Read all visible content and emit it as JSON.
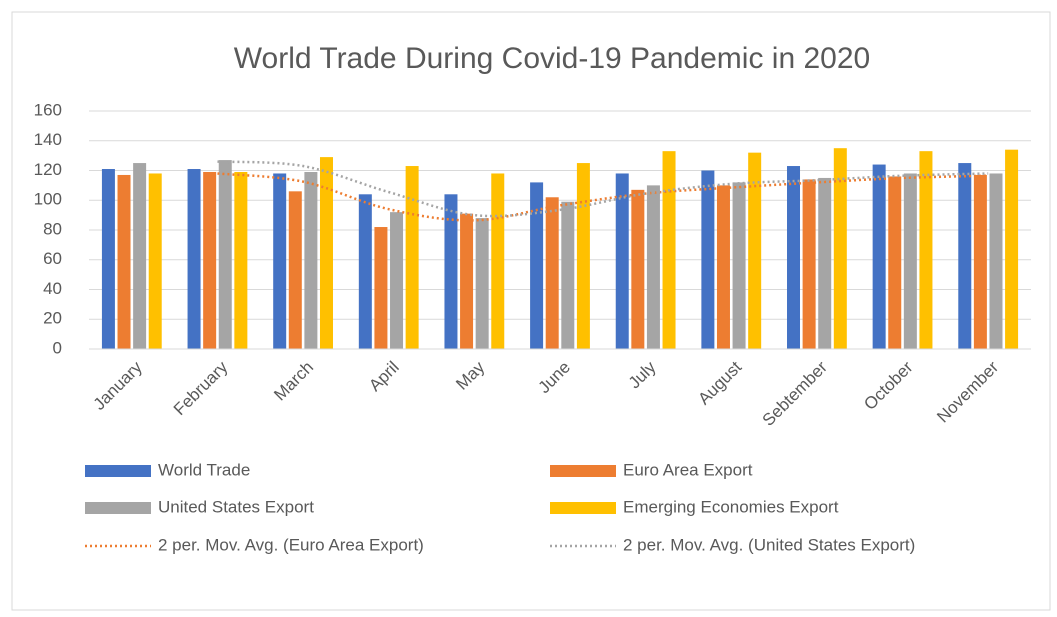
{
  "chart_data": {
    "type": "bar",
    "title": "World Trade During Covid-19 Pandemic in 2020",
    "categories": [
      "January",
      "February",
      "March",
      "April",
      "May",
      "June",
      "July",
      "August",
      "Sebtember",
      "October",
      "November"
    ],
    "series": [
      {
        "name": "World Trade",
        "color": "#4472c4",
        "values": [
          121,
          121,
          118,
          104,
          104,
          112,
          118,
          120,
          123,
          124,
          125
        ]
      },
      {
        "name": "Euro Area Export",
        "color": "#ed7d31",
        "values": [
          117,
          119,
          106,
          82,
          91,
          102,
          107,
          110,
          114,
          116,
          117
        ]
      },
      {
        "name": "United States Export",
        "color": "#a5a5a5",
        "values": [
          125,
          127,
          119,
          92,
          88,
          99,
          110,
          112,
          115,
          118,
          118
        ]
      },
      {
        "name": "Emerging Economies Export",
        "color": "#ffc000",
        "values": [
          118,
          119,
          129,
          123,
          118,
          125,
          133,
          132,
          135,
          133,
          134
        ]
      }
    ],
    "trendlines": [
      {
        "name": "2 per. Mov. Avg. (Euro Area Export)",
        "color": "#ed7d31",
        "values": [
          null,
          118,
          112.5,
          94,
          86.5,
          96.5,
          104.5,
          108.5,
          112,
          115,
          116.5
        ]
      },
      {
        "name": "2 per. Mov. Avg. (United States Export)",
        "color": "#a5a5a5",
        "values": [
          null,
          126,
          123,
          105.5,
          90,
          93.5,
          104.5,
          111,
          113.5,
          116.5,
          118
        ]
      }
    ],
    "ylim": [
      0,
      160
    ],
    "yticks": [
      0,
      20,
      40,
      60,
      80,
      100,
      120,
      140,
      160
    ],
    "grid": true,
    "legend": "bottom"
  }
}
